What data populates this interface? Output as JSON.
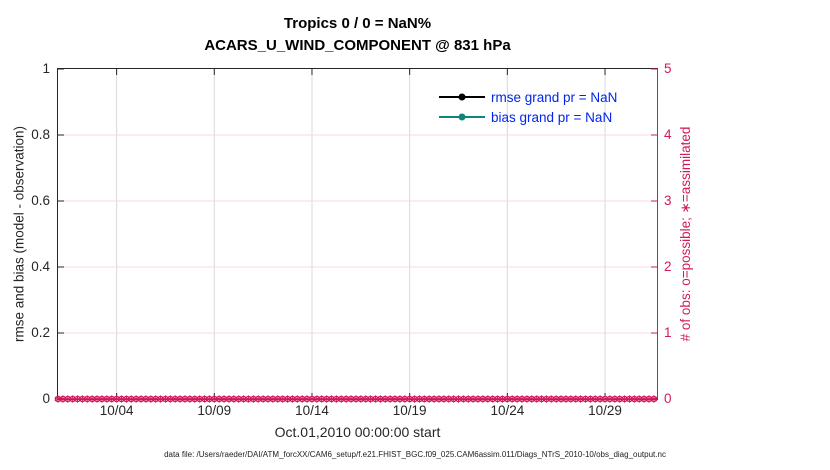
{
  "colors": {
    "axis_dark": "#262626",
    "crimson": "#d01a5d",
    "grid_gray": "#d9d9d9",
    "grid_pink": "#f7d9e4",
    "legend_blue": "#0026ee",
    "rmse_black": "#000000",
    "bias_teal": "#0f857c"
  },
  "chart_data": {
    "type": "line",
    "title": "Tropics 0 / 0 = NaN%",
    "subtitle": "ACARS_U_WIND_COMPONENT @ 831 hPa",
    "xlabel": "Oct.01,2010 00:00:00 start",
    "ylabel_left": "rmse and bias (model - observation)",
    "ylabel_right": "# of obs: o=possible; ∗=assimilated",
    "x_axis": {
      "tick_labels": [
        "10/04",
        "10/09",
        "10/14",
        "10/19",
        "10/24",
        "10/29"
      ],
      "tick_days": [
        3,
        8,
        13,
        18,
        23,
        28
      ],
      "domain_days": [
        0,
        30.66
      ],
      "grid": true
    },
    "y_left": {
      "tick_labels": [
        "0",
        "0.2",
        "0.4",
        "0.6",
        "0.8",
        "1"
      ],
      "ticks": [
        0,
        0.2,
        0.4,
        0.6,
        0.8,
        1
      ],
      "range": [
        0,
        1
      ]
    },
    "y_right": {
      "tick_labels": [
        "0",
        "1",
        "2",
        "3",
        "4",
        "5"
      ],
      "ticks": [
        0,
        1,
        2,
        3,
        4,
        5
      ],
      "range": [
        0,
        5
      ],
      "grid": true
    },
    "series": [
      {
        "name": "rmse",
        "legend_label": "rmse grand pr = NaN",
        "color": "#000000",
        "values_note": "NaN (no curve plotted)"
      },
      {
        "name": "bias",
        "legend_label": "bias grand pr = NaN",
        "color": "#0f857c",
        "values_note": "NaN (no curve plotted)"
      }
    ],
    "legend_position": "top-right, no box",
    "obs_counts": {
      "possible": 0,
      "assimilated": 0,
      "marker_days_start": 0,
      "marker_days_end": 30.5,
      "marker_step_days": 0.25,
      "note": "o and ∗ markers all at count 0 along bottom axis"
    }
  },
  "footer": {
    "text": "data file: /Users/raeder/DAI/ATM_forcXX/CAM6_setup/f.e21.FHIST_BGC.f09_025.CAM6assim.011/Diags_NTrS_2010-10/obs_diag_output.nc"
  }
}
